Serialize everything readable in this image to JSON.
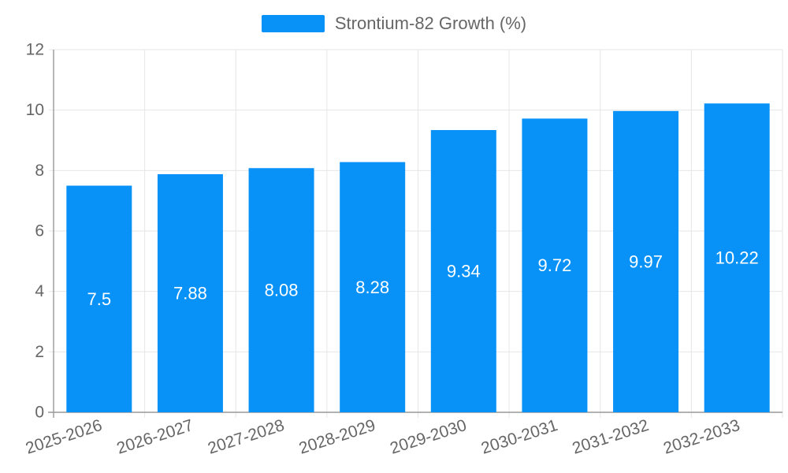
{
  "legend": {
    "label": "Strontium-82 Growth (%)"
  },
  "chart_data": {
    "type": "bar",
    "title": "",
    "xlabel": "",
    "ylabel": "",
    "legend_label": "Strontium-82 Growth (%)",
    "legend_position": "top",
    "categories": [
      "2025-2026",
      "2026-2027",
      "2027-2028",
      "2028-2029",
      "2029-2030",
      "2030-2031",
      "2031-2032",
      "2032-2033"
    ],
    "values": [
      7.5,
      7.88,
      8.08,
      8.28,
      9.34,
      9.72,
      9.97,
      10.22
    ],
    "value_labels": [
      "7.5",
      "7.88",
      "8.08",
      "8.28",
      "9.34",
      "9.72",
      "9.97",
      "10.22"
    ],
    "ylim": [
      0,
      12
    ],
    "yticks": [
      0,
      2,
      4,
      6,
      8,
      10,
      12
    ],
    "grid": true,
    "x_label_rotation_deg": -18,
    "colors": {
      "bar": "#0892f8",
      "value_label": "#ffffff",
      "grid": "#e6e6e6",
      "axis": "#999999",
      "tick_label": "#666666",
      "legend_text": "#666666",
      "background": "#ffffff"
    }
  }
}
